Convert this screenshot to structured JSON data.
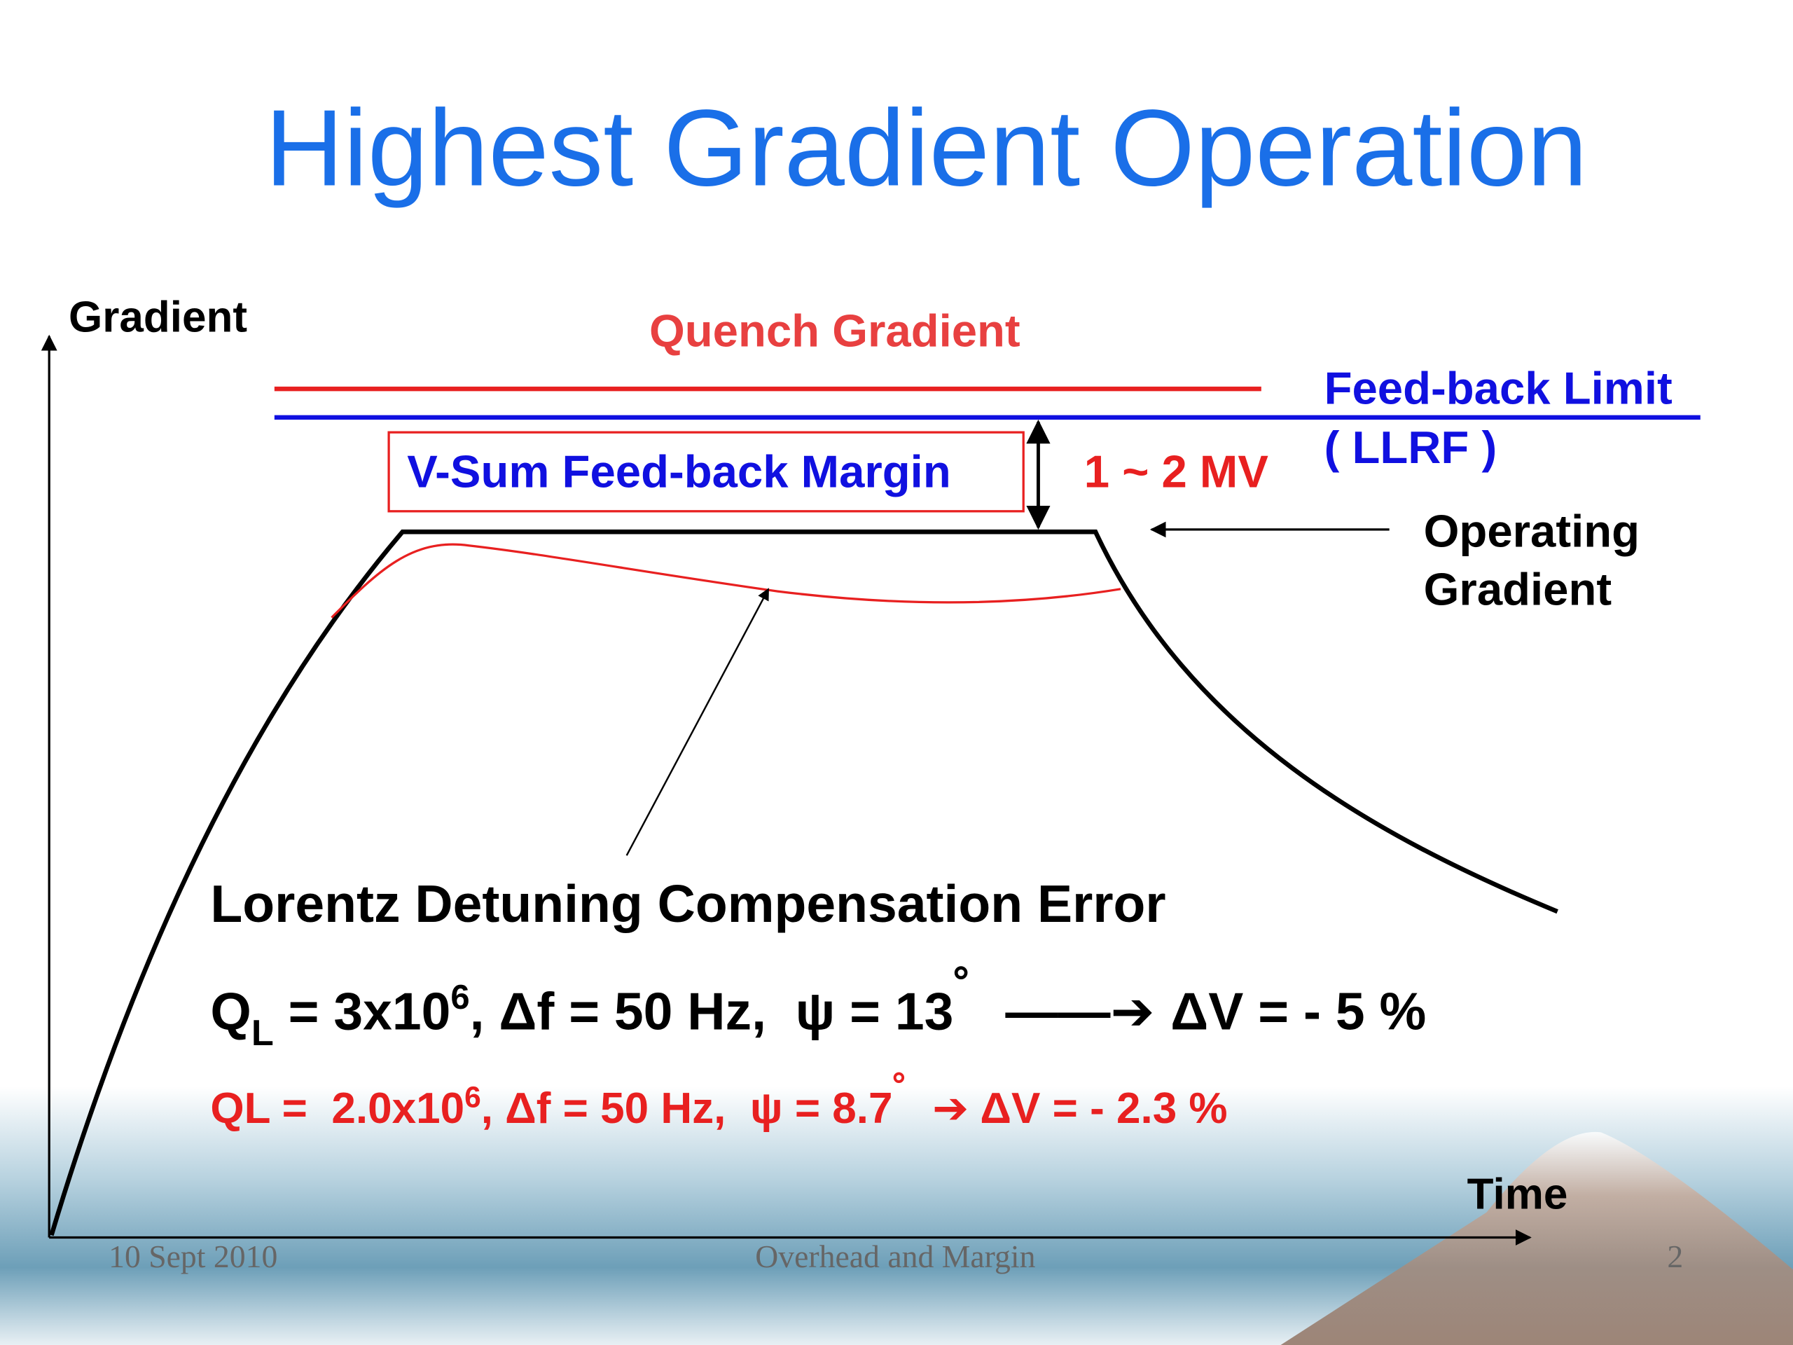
{
  "title": "Highest Gradient Operation",
  "axes": {
    "y_label": "Gradient",
    "x_label": "Time"
  },
  "annotations": {
    "quench": "Quench Gradient",
    "feedback_limit": "Feed-back Limit",
    "llrf": "( LLRF )",
    "margin_box": "V-Sum Feed-back Margin",
    "margin_value": "1 ~ 2 MV",
    "operating_1": "Operating",
    "operating_2": "Gradient",
    "lorentz": "Lorentz Detuning Compensation Error"
  },
  "formula_1": {
    "q": "Q",
    "sub": "L",
    "a": " = 3x10",
    "sup": "6",
    "b": ", Δf = 50 Hz,  ψ = 13",
    "deg": "˚",
    "arrow": "——➔",
    "c": "ΔV = - 5 %"
  },
  "formula_2": {
    "q": "QL =  2.0x10",
    "sup": "6",
    "b": ", Δf = 50 Hz,  ψ = 8.7",
    "deg": "˚",
    "arrow": "➔",
    "c": "ΔV = - 2.3 %"
  },
  "footer": {
    "date": "10 Sept 2010",
    "topic": "Overhead and Margin",
    "page": "2"
  }
}
